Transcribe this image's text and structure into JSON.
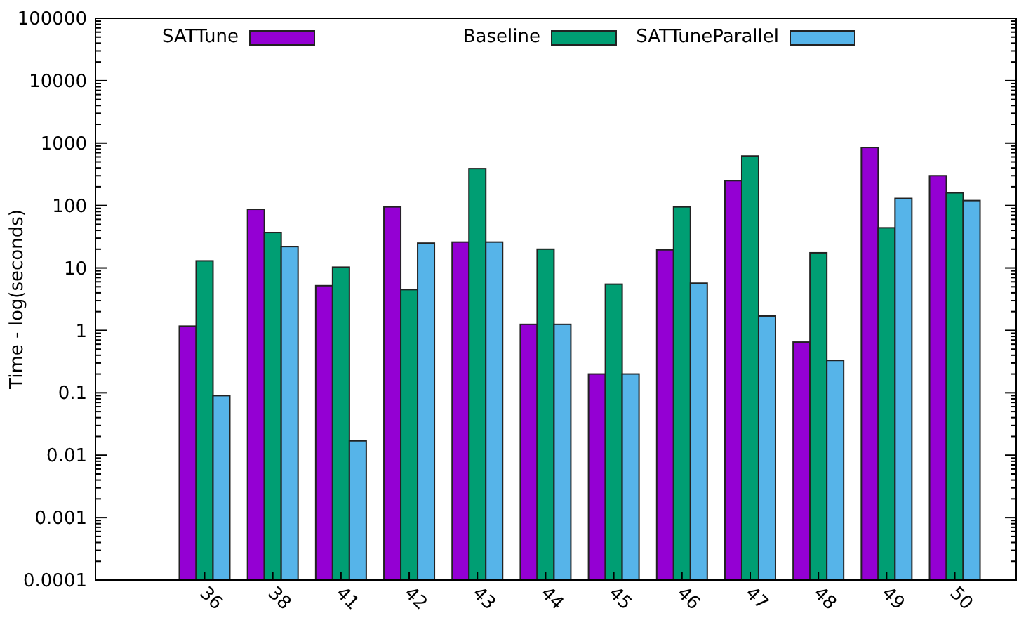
{
  "chart_data": {
    "type": "bar",
    "ylabel": "Time - log(seconds)",
    "log": true,
    "legend": "top",
    "grid": false,
    "categories": [
      "36",
      "38",
      "41",
      "42",
      "43",
      "44",
      "45",
      "46",
      "47",
      "48",
      "49",
      "50"
    ],
    "ylim": [
      0.0001,
      100000
    ],
    "yticks": [
      0.0001,
      0.001,
      0.01,
      0.1,
      1,
      10,
      100,
      1000,
      10000,
      100000
    ],
    "series": [
      {
        "name": "SATTune",
        "color": "#9400d3",
        "values": [
          1.17,
          87,
          5.2,
          95,
          26,
          1.25,
          0.2,
          19.5,
          250,
          0.65,
          850,
          300
        ]
      },
      {
        "name": "Baseline",
        "color": "#009e73",
        "values": [
          13,
          37,
          10.3,
          4.5,
          390,
          20,
          5.5,
          95,
          620,
          17.5,
          44,
          160
        ]
      },
      {
        "name": "SATTuneParallel",
        "color": "#56b4e9",
        "values": [
          0.09,
          22,
          0.017,
          25,
          26,
          1.25,
          0.2,
          5.7,
          1.7,
          0.33,
          130,
          120
        ]
      }
    ]
  }
}
